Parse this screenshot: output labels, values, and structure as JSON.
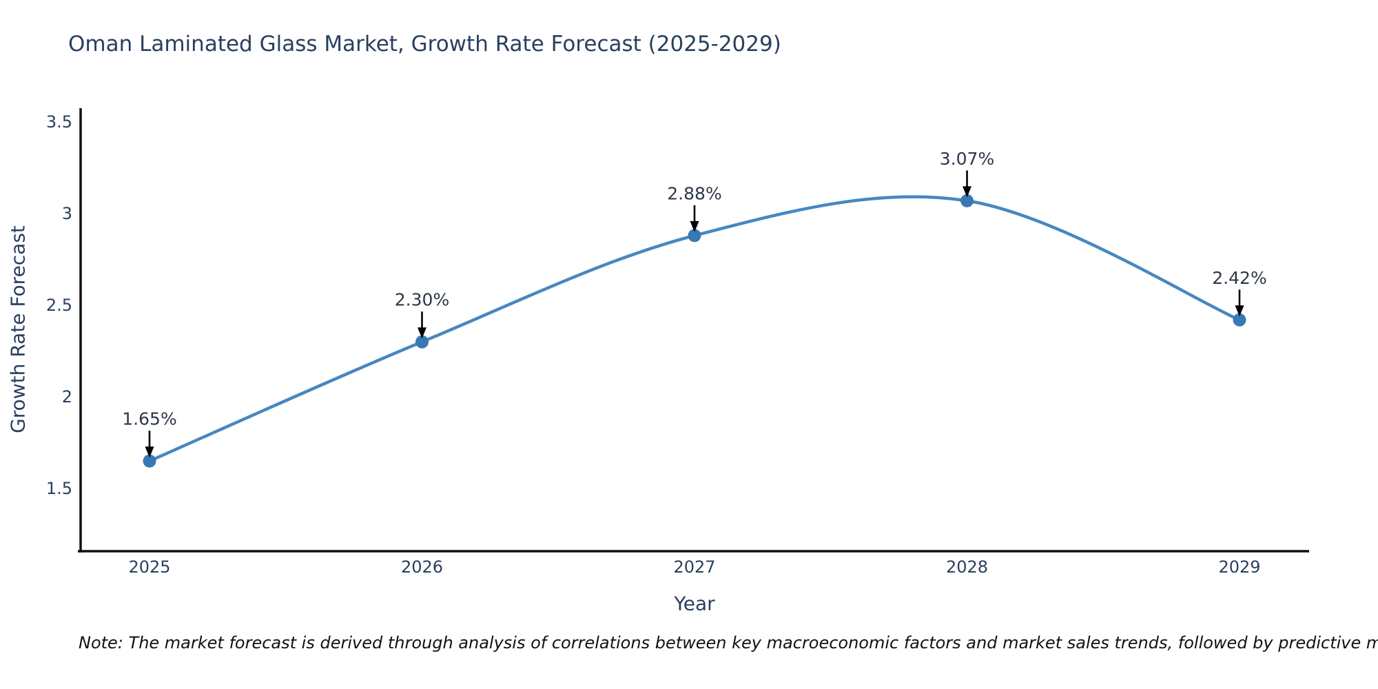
{
  "title": "Oman Laminated Glass Market, Growth Rate Forecast (2025-2029)",
  "note": "Note: The market forecast is derived through analysis of correlations between key macroeconomic factors and market sales trends, followed by predictive modeling to project future sales",
  "chart_data": {
    "type": "line",
    "title": "Oman Laminated Glass Market, Growth Rate Forecast (2025-2029)",
    "xlabel": "Year",
    "ylabel": "Growth Rate Forecast",
    "categories": [
      "2025",
      "2026",
      "2027",
      "2028",
      "2029"
    ],
    "values": [
      1.65,
      2.3,
      2.88,
      3.07,
      2.42
    ],
    "point_labels": [
      "1.65%",
      "2.30%",
      "2.88%",
      "3.07%",
      "2.42%"
    ],
    "series_name": "Growth Rate Forecast",
    "y_ticks": [
      1.5,
      2.0,
      2.5,
      3.0,
      3.5
    ],
    "y_tick_labels": [
      "1.5",
      "2",
      "2.5",
      "3",
      "3.5"
    ],
    "ylim": [
      1.15,
      3.57
    ],
    "line_shape": "spline",
    "grid": false,
    "legend_position": "none",
    "annotations_style": "black-arrow-above-point",
    "colors": {
      "line": "#4787c0",
      "marker": "#3879b4",
      "axis": "#111111",
      "tick_text": "#2a3f5f",
      "title_text": "#2a3f5f",
      "annotation": "#000000",
      "background": "#ffffff"
    }
  }
}
